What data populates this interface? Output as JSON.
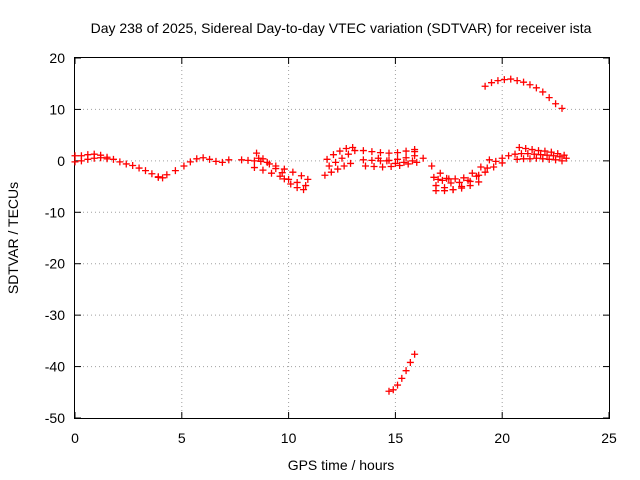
{
  "chart_data": {
    "type": "scatter",
    "title": "Day 238 of 2025, Sidereal Day-to-day VTEC variation (SDTVAR) for receiver ista",
    "xlabel": "GPS time / hours",
    "ylabel": "SDTVAR / TECUs",
    "xlim": [
      0,
      25
    ],
    "ylim": [
      -50,
      20
    ],
    "xticks": [
      0,
      5,
      10,
      15,
      20,
      25
    ],
    "yticks": [
      -50,
      -40,
      -30,
      -20,
      -10,
      0,
      10,
      20
    ],
    "grid": true,
    "marker": "+",
    "colors": {
      "series": "#ff0000",
      "axis": "#000000",
      "grid": "#a0a0a0"
    },
    "series": [
      {
        "name": "seg-01",
        "x": [
          0.0,
          0.3,
          0.6,
          0.9,
          1.2,
          1.5,
          1.8,
          2.1,
          2.4,
          2.7,
          3.0,
          3.3,
          3.6,
          3.9,
          4.1
        ],
        "y": [
          1.0,
          1.0,
          1.2,
          1.3,
          1.1,
          0.7,
          0.3,
          -0.2,
          -0.6,
          -0.9,
          -1.4,
          -1.9,
          -2.5,
          -3.1,
          -3.3
        ]
      },
      {
        "name": "seg-02",
        "x": [
          0.0,
          0.3,
          0.6,
          0.9,
          1.2,
          1.5
        ],
        "y": [
          -0.2,
          0.0,
          0.3,
          0.5,
          0.6,
          0.4
        ]
      },
      {
        "name": "seg-03",
        "x": [
          3.9,
          4.3,
          4.7,
          5.1,
          5.4,
          5.7,
          6.0,
          6.3,
          6.6,
          6.9,
          7.2
        ],
        "y": [
          -3.2,
          -2.7,
          -1.9,
          -1.0,
          -0.2,
          0.4,
          0.6,
          0.3,
          -0.1,
          -0.3,
          0.2
        ]
      },
      {
        "name": "seg-04",
        "x": [
          7.8,
          8.1,
          8.4,
          8.7
        ],
        "y": [
          0.2,
          0.1,
          0.0,
          -0.1
        ]
      },
      {
        "name": "seg-05",
        "x": [
          8.4,
          8.8,
          9.2,
          9.6,
          10.0,
          10.4,
          10.8
        ],
        "y": [
          -1.3,
          -1.8,
          -2.4,
          -3.0,
          -3.6,
          -4.2,
          -4.8
        ]
      },
      {
        "name": "seg-06",
        "x": [
          8.6,
          9.0,
          9.4,
          9.8,
          10.2,
          10.6,
          10.9
        ],
        "y": [
          0.5,
          -0.3,
          -1.0,
          -1.6,
          -2.2,
          -2.9,
          -3.6
        ]
      },
      {
        "name": "seg-07",
        "x": [
          8.5,
          8.8,
          9.1,
          9.4,
          9.7
        ],
        "y": [
          1.5,
          0.4,
          -0.6,
          -1.5,
          -2.3
        ]
      },
      {
        "name": "seg-08",
        "x": [
          9.8,
          10.1,
          10.4,
          10.7
        ],
        "y": [
          -3.5,
          -4.5,
          -5.2,
          -5.6
        ]
      },
      {
        "name": "seg-09",
        "x": [
          11.7,
          12.0,
          12.3,
          12.6,
          12.9
        ],
        "y": [
          -2.8,
          -2.2,
          -1.6,
          -1.0,
          -0.5
        ]
      },
      {
        "name": "seg-10",
        "x": [
          11.8,
          12.1,
          12.4,
          12.7,
          13.0
        ],
        "y": [
          0.3,
          1.2,
          1.9,
          2.4,
          2.6
        ]
      },
      {
        "name": "seg-11",
        "x": [
          11.9,
          12.2,
          12.5,
          12.8,
          13.1
        ],
        "y": [
          -1.0,
          -0.3,
          0.5,
          1.3,
          2.0
        ]
      },
      {
        "name": "seg-12",
        "x": [
          13.5,
          13.9,
          14.3,
          14.7,
          15.1,
          15.5,
          15.9
        ],
        "y": [
          2.0,
          1.8,
          1.6,
          1.5,
          1.6,
          1.9,
          2.2
        ]
      },
      {
        "name": "seg-13",
        "x": [
          13.5,
          13.9,
          14.3,
          14.7,
          15.1,
          15.5,
          15.9
        ],
        "y": [
          0.2,
          0.1,
          0.0,
          0.1,
          0.3,
          0.6,
          1.0
        ]
      },
      {
        "name": "seg-14",
        "x": [
          13.6,
          14.0,
          14.4,
          14.8,
          15.2,
          15.6,
          16.0
        ],
        "y": [
          -1.0,
          -1.1,
          -1.2,
          -1.1,
          -0.9,
          -0.6,
          -0.3
        ]
      },
      {
        "name": "seg-15",
        "x": [
          14.2,
          14.6,
          15.0,
          15.4,
          15.8
        ],
        "y": [
          0.5,
          0.0,
          -0.5,
          -0.3,
          0.0
        ]
      },
      {
        "name": "seg-16",
        "x": [
          15.9,
          16.3,
          16.7,
          17.1,
          17.5
        ],
        "y": [
          1.8,
          0.5,
          -1.0,
          -2.4,
          -3.5
        ]
      },
      {
        "name": "seg-17",
        "x": [
          14.7,
          14.9,
          15.1,
          15.3,
          15.5,
          15.7,
          15.9
        ],
        "y": [
          -44.8,
          -44.5,
          -43.6,
          -42.3,
          -40.8,
          -39.2,
          -37.6
        ]
      },
      {
        "name": "seg-18",
        "x": [
          16.8,
          17.2,
          17.6,
          18.0,
          18.4,
          18.8,
          19.2,
          19.6,
          20.0
        ],
        "y": [
          -3.2,
          -3.8,
          -4.3,
          -4.2,
          -3.8,
          -3.0,
          -2.2,
          -1.2,
          -0.4
        ]
      },
      {
        "name": "seg-19",
        "x": [
          16.9,
          17.3,
          17.7,
          18.1,
          18.5,
          18.9,
          19.3
        ],
        "y": [
          -4.8,
          -5.2,
          -5.6,
          -5.0,
          -4.0,
          -2.8,
          -1.4
        ]
      },
      {
        "name": "seg-20",
        "x": [
          16.9,
          17.3,
          17.7,
          18.1,
          18.5,
          18.9
        ],
        "y": [
          -5.8,
          -5.8,
          -5.6,
          -5.3,
          -4.8,
          -4.1
        ]
      },
      {
        "name": "seg-21",
        "x": [
          17.0,
          17.4,
          17.8,
          18.2,
          18.6,
          19.0,
          19.4
        ],
        "y": [
          -3.6,
          -3.4,
          -3.5,
          -3.3,
          -2.4,
          -1.2,
          0.2
        ]
      },
      {
        "name": "seg-22",
        "x": [
          19.7,
          20.0,
          20.3,
          20.6,
          20.9,
          21.2,
          21.5,
          21.8,
          22.1,
          22.4,
          22.7,
          23.0
        ],
        "y": [
          -0.1,
          0.5,
          1.0,
          1.3,
          1.4,
          1.4,
          1.3,
          1.2,
          1.1,
          1.0,
          0.8,
          0.5
        ]
      },
      {
        "name": "seg-23",
        "x": [
          20.8,
          21.1,
          21.4,
          21.7,
          22.0,
          22.3,
          22.6,
          22.9
        ],
        "y": [
          2.6,
          2.4,
          2.2,
          2.0,
          1.9,
          1.7,
          1.4,
          1.1
        ]
      },
      {
        "name": "seg-24",
        "x": [
          20.7,
          21.0,
          21.3,
          21.6,
          21.9,
          22.2,
          22.5,
          22.8
        ],
        "y": [
          0.3,
          0.4,
          0.4,
          0.5,
          0.4,
          0.3,
          0.2,
          0.0
        ]
      },
      {
        "name": "seg-25",
        "x": [
          19.2,
          19.5,
          19.8,
          20.1,
          20.4,
          20.7,
          21.0,
          21.3,
          21.6,
          21.9,
          22.2,
          22.5,
          22.8
        ],
        "y": [
          14.5,
          15.2,
          15.6,
          15.8,
          15.9,
          15.6,
          15.3,
          14.8,
          14.2,
          13.4,
          12.3,
          11.1,
          10.2
        ]
      }
    ]
  }
}
